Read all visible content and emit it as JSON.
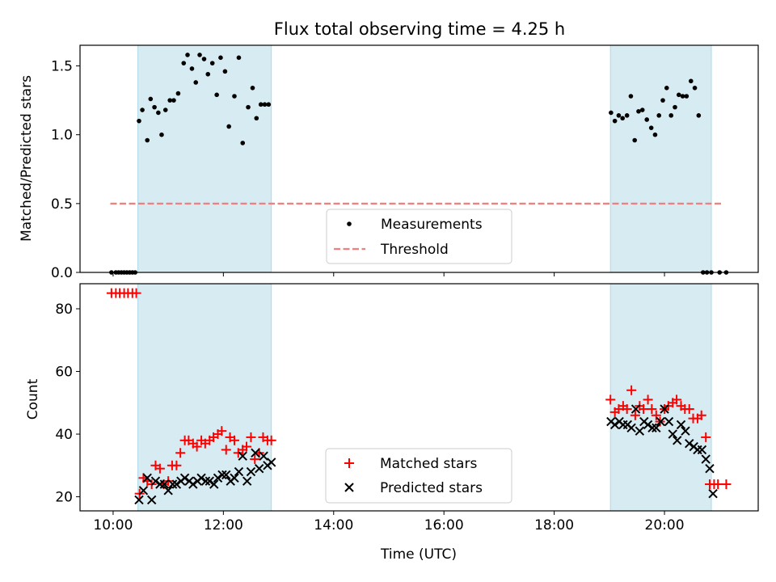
{
  "title": "Flux total observing time = 4.25 h",
  "chart_data": [
    {
      "type": "scatter",
      "ylabel": "Matched/Predicted stars",
      "xlim": [
        9.4,
        21.7
      ],
      "ylim": [
        0,
        1.65
      ],
      "yticks": [
        0.0,
        0.5,
        1.0,
        1.5
      ],
      "ytick_labels": [
        "0.0",
        "0.5",
        "1.0",
        "1.5"
      ],
      "shaded_intervals": [
        [
          10.45,
          12.87
        ],
        [
          19.02,
          20.85
        ]
      ],
      "shade_color": "#add8e6",
      "legend_placement": "lower-center",
      "threshold": {
        "name": "Threshold",
        "y": 0.5,
        "x": [
          9.95,
          21.05
        ],
        "color": "#f08080"
      },
      "series": [
        {
          "name": "Measurements",
          "marker": "dot",
          "color": "#000000",
          "x": [
            9.97,
            10.05,
            10.1,
            10.15,
            10.2,
            10.25,
            10.3,
            10.35,
            10.4,
            10.47,
            10.53,
            10.62,
            10.68,
            10.75,
            10.82,
            10.88,
            10.95,
            11.03,
            11.1,
            11.18,
            11.28,
            11.35,
            11.43,
            11.5,
            11.57,
            11.65,
            11.72,
            11.8,
            11.88,
            11.95,
            12.03,
            12.1,
            12.2,
            12.28,
            12.35,
            12.45,
            12.53,
            12.6,
            12.68,
            12.75,
            12.82,
            19.03,
            19.1,
            19.17,
            19.24,
            19.32,
            19.39,
            19.46,
            19.53,
            19.6,
            19.68,
            19.76,
            19.83,
            19.9,
            19.97,
            20.04,
            20.12,
            20.19,
            20.26,
            20.33,
            20.4,
            20.48,
            20.55,
            20.62,
            20.7,
            20.77,
            20.85,
            21.0,
            21.12
          ],
          "y": [
            0.0,
            0.0,
            0.0,
            0.0,
            0.0,
            0.0,
            0.0,
            0.0,
            0.0,
            1.1,
            1.18,
            0.96,
            1.26,
            1.2,
            1.16,
            1.0,
            1.18,
            1.25,
            1.25,
            1.3,
            1.52,
            1.58,
            1.48,
            1.38,
            1.58,
            1.55,
            1.44,
            1.52,
            1.29,
            1.56,
            1.46,
            1.06,
            1.28,
            1.56,
            0.94,
            1.2,
            1.34,
            1.12,
            1.22,
            1.22,
            1.22,
            1.16,
            1.1,
            1.14,
            1.12,
            1.14,
            1.28,
            0.96,
            1.17,
            1.18,
            1.11,
            1.05,
            1.0,
            1.14,
            1.25,
            1.34,
            1.14,
            1.2,
            1.29,
            1.28,
            1.28,
            1.39,
            1.34,
            1.14,
            0.0,
            0.0,
            0.0,
            0.0,
            0.0
          ]
        }
      ]
    },
    {
      "type": "scatter",
      "xlabel": "Time (UTC)",
      "ylabel": "Count",
      "xlim": [
        9.4,
        21.7
      ],
      "ylim": [
        15.5,
        88
      ],
      "xticks": [
        10,
        12,
        14,
        16,
        18,
        20
      ],
      "xtick_labels": [
        "10:00",
        "12:00",
        "14:00",
        "16:00",
        "18:00",
        "20:00"
      ],
      "yticks": [
        20,
        40,
        60,
        80
      ],
      "ytick_labels": [
        "20",
        "40",
        "60",
        "80"
      ],
      "shaded_intervals": [
        [
          10.45,
          12.87
        ],
        [
          19.02,
          20.85
        ]
      ],
      "shade_color": "#add8e6",
      "legend_placement": "lower-center",
      "series": [
        {
          "name": "Matched stars",
          "marker": "plus",
          "color": "#ff0000",
          "x": [
            9.97,
            10.05,
            10.12,
            10.2,
            10.27,
            10.35,
            10.42,
            10.48,
            10.55,
            10.62,
            10.7,
            10.77,
            10.85,
            10.92,
            11.0,
            11.07,
            11.15,
            11.22,
            11.3,
            11.37,
            11.45,
            11.52,
            11.6,
            11.67,
            11.75,
            11.82,
            11.9,
            11.97,
            12.05,
            12.12,
            12.2,
            12.27,
            12.35,
            12.42,
            12.5,
            12.57,
            12.65,
            12.72,
            12.8,
            12.87,
            19.02,
            19.1,
            19.17,
            19.25,
            19.32,
            19.4,
            19.47,
            19.55,
            19.62,
            19.7,
            19.77,
            19.85,
            19.92,
            20.0,
            20.07,
            20.15,
            20.22,
            20.3,
            20.37,
            20.45,
            20.52,
            20.6,
            20.67,
            20.75,
            20.82,
            20.9,
            20.97,
            21.12
          ],
          "y": [
            85,
            85,
            85,
            85,
            85,
            85,
            85,
            21,
            26,
            25,
            24,
            30,
            29,
            24,
            25,
            30,
            30,
            34,
            38,
            38,
            37,
            36,
            38,
            37,
            38,
            39,
            40,
            41,
            35,
            39,
            38,
            34,
            35,
            36,
            39,
            32,
            34,
            39,
            38,
            38,
            51,
            47,
            48,
            49,
            48,
            54,
            46,
            49,
            48,
            51,
            48,
            46,
            44,
            48,
            49,
            50,
            51,
            49,
            48,
            48,
            45,
            45,
            46,
            39,
            24,
            24,
            24,
            24
          ]
        },
        {
          "name": "Predicted stars",
          "marker": "x",
          "color": "#000000",
          "x": [
            10.47,
            10.55,
            10.62,
            10.7,
            10.77,
            10.85,
            10.93,
            11.0,
            11.08,
            11.15,
            11.23,
            11.3,
            11.38,
            11.45,
            11.53,
            11.6,
            11.68,
            11.75,
            11.83,
            11.9,
            11.98,
            12.05,
            12.13,
            12.2,
            12.28,
            12.35,
            12.43,
            12.5,
            12.58,
            12.65,
            12.73,
            12.8,
            12.87,
            19.03,
            19.1,
            19.18,
            19.25,
            19.33,
            19.4,
            19.48,
            19.55,
            19.63,
            19.7,
            19.78,
            19.85,
            19.93,
            20.0,
            20.08,
            20.15,
            20.23,
            20.3,
            20.38,
            20.45,
            20.53,
            20.6,
            20.68,
            20.75,
            20.82,
            20.88
          ],
          "y": [
            19,
            22,
            26,
            19,
            25,
            24,
            24,
            22,
            24,
            24,
            25,
            26,
            25,
            24,
            25,
            26,
            25,
            25,
            24,
            26,
            27,
            27,
            25,
            26,
            28,
            33,
            25,
            28,
            34,
            29,
            33,
            30,
            31,
            44,
            43,
            44,
            43,
            43,
            42,
            48,
            41,
            44,
            43,
            42,
            42,
            44,
            48,
            44,
            40,
            38,
            43,
            41,
            37,
            36,
            35,
            35,
            32,
            29,
            21
          ]
        }
      ]
    }
  ]
}
